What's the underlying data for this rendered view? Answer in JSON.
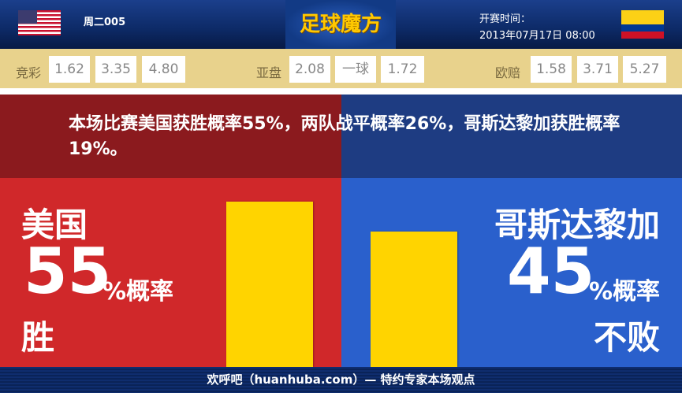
{
  "header": {
    "match_code": "周二005",
    "logo": "足球魔方",
    "start_label": "开赛时间：",
    "start_time": "2013年07月17日 08:00"
  },
  "odds": {
    "jingcai": {
      "label": "竞彩",
      "values": [
        "1.62",
        "3.35",
        "4.80"
      ]
    },
    "yapan": {
      "label": "亚盘",
      "values": [
        "2.08",
        "一球",
        "1.72"
      ]
    },
    "oupei": {
      "label": "欧赔",
      "values": [
        "1.58",
        "3.71",
        "5.27"
      ]
    }
  },
  "summary": "本场比赛美国获胜概率55%，两队战平概率26%，哥斯达黎加获胜概率19%。",
  "home": {
    "team": "美国",
    "percent": "55",
    "percent_suffix": "%概率",
    "outcome": "胜",
    "probability": 55
  },
  "away": {
    "team": "哥斯达黎加",
    "percent": "45",
    "percent_suffix": "%概率",
    "outcome": "不败",
    "probability": 45
  },
  "footer": "欢呼吧（huanhuba.com）— 特约专家本场观点",
  "colors": {
    "home": "#d0282a",
    "away": "#2a60cc",
    "bar": "#ffd400",
    "odds_bg": "#e8d28c"
  }
}
